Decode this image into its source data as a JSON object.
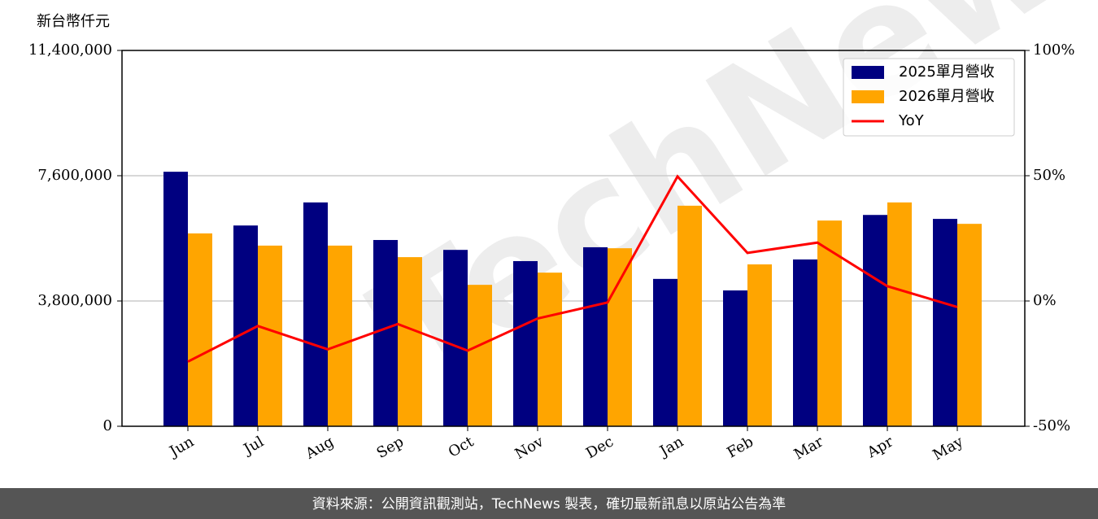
{
  "chart_data": {
    "type": "bar-line",
    "y_label": "新台幣仟元",
    "watermark": "TechNews",
    "source": "資料來源：公開資訊觀測站，TechNews 製表，確切最新訊息以原站公告為準",
    "categories": [
      "Jun",
      "Jul",
      "Aug",
      "Sep",
      "Oct",
      "Nov",
      "Dec",
      "Jan",
      "Feb",
      "Mar",
      "Apr",
      "May"
    ],
    "series": [
      {
        "name": "2025單月營收",
        "color": "#000080",
        "type": "bar",
        "values": [
          7720000,
          6090000,
          6790000,
          5650000,
          5350000,
          5010000,
          5430000,
          4470000,
          4120000,
          5060000,
          6410000,
          6290000
        ]
      },
      {
        "name": "2026單月營收",
        "color": "#ffa500",
        "type": "bar",
        "values": [
          5850000,
          5480000,
          5480000,
          5130000,
          4290000,
          4660000,
          5400000,
          6690000,
          4910000,
          6240000,
          6790000,
          6140000
        ]
      },
      {
        "name": "YoY",
        "color": "#ff0000",
        "type": "line",
        "axis": "y2",
        "values": [
          -24.2,
          -10,
          -19.3,
          -9.2,
          -19.8,
          -7,
          -0.6,
          49.7,
          19.2,
          23.3,
          5.9,
          -2.4
        ]
      }
    ],
    "ylim": [
      0,
      11400000
    ],
    "yticks": [
      0,
      {
        "value": 3800000,
        "label": "3,800,000"
      },
      {
        "value": 7600000,
        "label": "7,600,000"
      },
      {
        "value": 11400000,
        "label": "11,400,000"
      }
    ],
    "y2lim": [
      -50,
      100
    ],
    "y2ticks": [
      {
        "value": -50,
        "label": "-50%"
      },
      {
        "value": 0,
        "label": "0%"
      },
      {
        "value": 50,
        "label": "50%"
      },
      {
        "value": 100,
        "label": "100%"
      }
    ],
    "grid": true,
    "legend": "upper right"
  }
}
